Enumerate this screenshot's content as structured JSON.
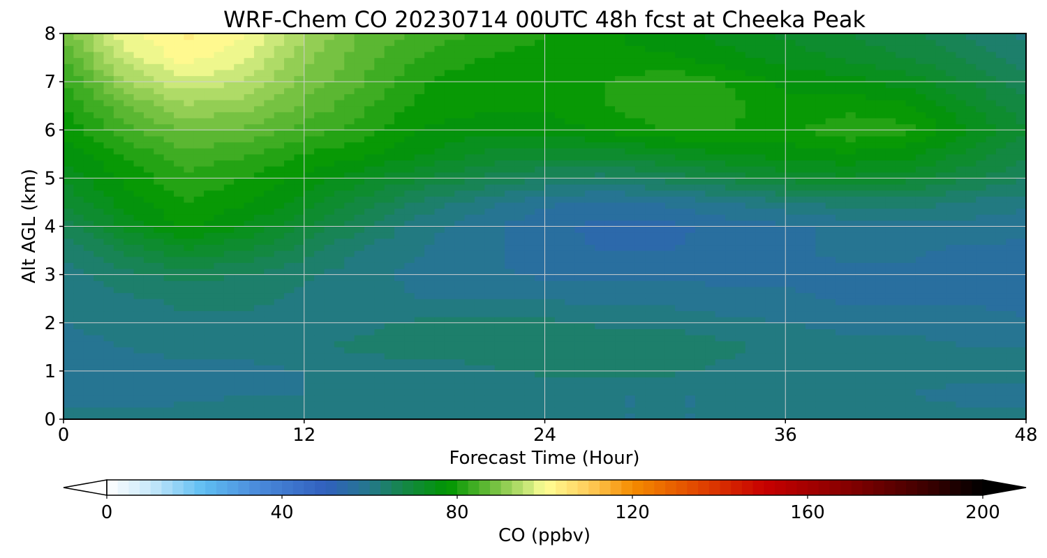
{
  "chart_data": {
    "type": "heatmap",
    "title": "WRF-Chem CO  20230714 00UTC 48h fcst at Cheeka Peak",
    "xlabel": "Forecast Time (Hour)",
    "ylabel": "Alt AGL (km)",
    "xlim": [
      0,
      48
    ],
    "ylim": [
      0,
      8
    ],
    "x_ticks": [
      "0",
      "12",
      "24",
      "36",
      "48"
    ],
    "y_ticks": [
      "0",
      "1",
      "2",
      "3",
      "4",
      "5",
      "6",
      "7",
      "8"
    ],
    "grid": true,
    "x": [
      0,
      3,
      6,
      9,
      12,
      15,
      18,
      21,
      24,
      27,
      30,
      33,
      36,
      39,
      42,
      45,
      48
    ],
    "y": [
      0,
      0.5,
      1,
      1.5,
      2,
      2.5,
      3,
      3.5,
      4,
      4.5,
      5,
      5.5,
      6,
      6.5,
      7,
      7.5,
      8
    ],
    "z": [
      [
        62,
        62,
        62,
        62,
        62,
        62,
        62,
        61,
        61,
        60,
        60,
        60,
        62,
        62,
        62,
        61,
        61
      ],
      [
        58,
        58,
        59,
        60,
        60,
        60,
        60,
        60,
        60,
        60,
        60,
        60,
        60,
        60,
        60,
        59,
        59
      ],
      [
        58,
        58,
        59,
        59,
        60,
        61,
        61,
        62,
        63,
        64,
        63,
        62,
        61,
        61,
        61,
        61,
        61
      ],
      [
        59,
        60,
        61,
        61,
        62,
        63,
        64,
        64,
        65,
        64,
        64,
        63,
        62,
        61,
        61,
        60,
        60
      ],
      [
        60,
        61,
        62,
        62,
        62,
        62,
        63,
        63,
        63,
        62,
        62,
        61,
        60,
        59,
        59,
        59,
        58
      ],
      [
        60,
        62,
        63,
        63,
        62,
        61,
        60,
        60,
        60,
        59,
        59,
        58,
        58,
        57,
        57,
        57,
        56
      ],
      [
        61,
        64,
        66,
        65,
        63,
        61,
        59,
        58,
        57,
        57,
        57,
        57,
        57,
        57,
        57,
        56,
        55
      ],
      [
        63,
        68,
        72,
        70,
        66,
        62,
        60,
        58,
        56,
        55,
        55,
        56,
        57,
        58,
        58,
        57,
        57
      ],
      [
        66,
        73,
        78,
        75,
        70,
        65,
        61,
        58,
        56,
        54,
        54,
        56,
        57,
        58,
        59,
        59,
        58
      ],
      [
        70,
        76,
        80,
        78,
        74,
        69,
        64,
        61,
        58,
        57,
        58,
        60,
        62,
        64,
        64,
        62,
        61
      ],
      [
        73,
        78,
        82,
        80,
        77,
        73,
        70,
        67,
        65,
        64,
        66,
        68,
        71,
        72,
        71,
        68,
        65
      ],
      [
        76,
        80,
        84,
        83,
        80,
        78,
        75,
        72,
        71,
        71,
        73,
        75,
        76,
        77,
        76,
        72,
        68
      ],
      [
        78,
        84,
        88,
        87,
        84,
        81,
        77,
        76,
        76,
        78,
        80,
        80,
        79,
        82,
        81,
        75,
        70
      ],
      [
        80,
        87,
        92,
        91,
        87,
        83,
        79,
        78,
        78,
        80,
        82,
        81,
        78,
        79,
        78,
        73,
        68
      ],
      [
        82,
        92,
        97,
        95,
        89,
        85,
        80,
        78,
        78,
        80,
        82,
        80,
        77,
        76,
        74,
        70,
        66
      ],
      [
        85,
        96,
        101,
        98,
        91,
        86,
        82,
        80,
        79,
        78,
        78,
        76,
        74,
        72,
        70,
        67,
        63
      ],
      [
        88,
        99,
        103,
        100,
        93,
        87,
        84,
        82,
        80,
        78,
        76,
        74,
        72,
        70,
        68,
        65,
        62
      ]
    ],
    "colorbar": {
      "label": "CO  (ppbv)",
      "ticks": [
        "0",
        "40",
        "80",
        "120",
        "160",
        "200"
      ],
      "min": 0,
      "max": 200,
      "step": 2.5,
      "extend": "both"
    }
  }
}
